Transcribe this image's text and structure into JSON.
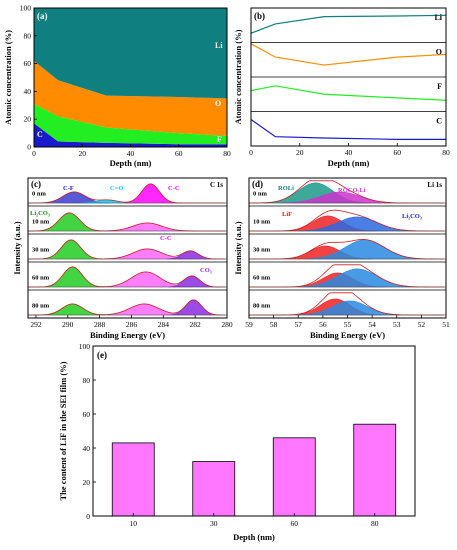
{
  "chart_data": [
    {
      "panel": "(a)",
      "type": "area",
      "xlabel": "Depth (nm)",
      "ylabel": "Atomic concentration (%)",
      "xlim": [
        0,
        80
      ],
      "ylim": [
        0,
        100
      ],
      "xticks": [
        "0",
        "20",
        "40",
        "60",
        "80"
      ],
      "yticks": [
        "0",
        "20",
        "40",
        "60",
        "80",
        "100"
      ],
      "x": [
        0,
        10,
        30,
        60,
        80
      ],
      "series": [
        {
          "name": "C",
          "color": "#1a1acd",
          "values": [
            17,
            4,
            3,
            2,
            2
          ]
        },
        {
          "name": "F",
          "color": "#22ee22",
          "values": [
            14,
            18,
            11,
            8,
            6
          ]
        },
        {
          "name": "O",
          "color": "#ff8c00",
          "values": [
            31,
            26,
            23,
            26,
            27
          ]
        },
        {
          "name": "Li",
          "color": "#0f7f7f",
          "values": [
            38,
            52,
            63,
            64,
            65
          ]
        }
      ]
    },
    {
      "panel": "(b)",
      "type": "line",
      "xlabel": "Depth (nm)",
      "ylabel": "Atomic concentration (%)",
      "xlim": [
        0,
        80
      ],
      "xticks": [
        "0",
        "20",
        "40",
        "60",
        "80"
      ],
      "x": [
        0,
        10,
        30,
        60,
        80
      ],
      "series": [
        {
          "name": "Li",
          "color": "#0f7f7f",
          "values": [
            38,
            52,
            63,
            64,
            65
          ]
        },
        {
          "name": "O",
          "color": "#ff8c00",
          "values": [
            31,
            26,
            23,
            26,
            27
          ]
        },
        {
          "name": "F",
          "color": "#22ee22",
          "values": [
            14,
            18,
            11,
            8,
            6
          ]
        },
        {
          "name": "C",
          "color": "#1a1acd",
          "values": [
            17,
            4,
            3,
            2,
            2
          ]
        }
      ]
    },
    {
      "panel": "(c)",
      "type": "line",
      "title": "C 1s",
      "xlabel": "Binding Energy (eV)",
      "ylabel": "Intensity (a.u.)",
      "xlim": [
        292.5,
        280
      ],
      "xticks": [
        "292",
        "290",
        "288",
        "286",
        "284",
        "282",
        "280"
      ],
      "rows": [
        "0 nm",
        "10 nm",
        "30 nm",
        "60 nm",
        "80 nm"
      ],
      "annotations": [
        {
          "text": "C-F",
          "color": "#1a1acd"
        },
        {
          "text": "C=O",
          "color": "#00d0ff"
        },
        {
          "text": "C-C",
          "color": "#ff00ff"
        },
        {
          "text": "Li₂CO₃",
          "color": "#1a8a1a"
        },
        {
          "text": "C-C",
          "color": "#ff00ff"
        },
        {
          "text": "CO₃",
          "color": "#8a2be2"
        }
      ],
      "peaks": [
        [
          {
            "pos": 289.6,
            "h": 0.55,
            "w": 0.7,
            "color": "#3c3cd0"
          },
          {
            "pos": 287.5,
            "h": 0.15,
            "w": 0.6,
            "color": "#00d0ff"
          },
          {
            "pos": 284.8,
            "h": 0.95,
            "w": 0.55,
            "color": "#ff00ff"
          }
        ],
        [
          {
            "pos": 289.9,
            "h": 0.9,
            "w": 0.65,
            "color": "#22cc22"
          },
          {
            "pos": 285.0,
            "h": 0.4,
            "w": 0.9,
            "color": "#ff66ff"
          }
        ],
        [
          {
            "pos": 289.8,
            "h": 0.95,
            "w": 0.6,
            "color": "#22cc22"
          },
          {
            "pos": 285.0,
            "h": 0.5,
            "w": 0.9,
            "color": "#ff66ff"
          },
          {
            "pos": 282.3,
            "h": 0.4,
            "w": 0.5,
            "color": "#8a2be2"
          }
        ],
        [
          {
            "pos": 289.7,
            "h": 1.0,
            "w": 0.6,
            "color": "#22cc22"
          },
          {
            "pos": 285.1,
            "h": 0.75,
            "w": 0.9,
            "color": "#ff66ff"
          },
          {
            "pos": 282.2,
            "h": 0.55,
            "w": 0.5,
            "color": "#8a2be2"
          }
        ],
        [
          {
            "pos": 289.7,
            "h": 0.55,
            "w": 0.65,
            "color": "#22cc22"
          },
          {
            "pos": 285.2,
            "h": 0.55,
            "w": 0.9,
            "color": "#ff66ff"
          },
          {
            "pos": 282.1,
            "h": 0.75,
            "w": 0.5,
            "color": "#8a2be2"
          }
        ]
      ]
    },
    {
      "panel": "(d)",
      "type": "line",
      "title": "Li 1s",
      "xlabel": "Binding Energy (eV)",
      "ylabel": "Intensity (a.u.)",
      "xlim": [
        59,
        51
      ],
      "xticks": [
        "59",
        "58",
        "57",
        "56",
        "55",
        "54",
        "53",
        "52",
        "51"
      ],
      "rows": [
        "0 nm",
        "10 nm",
        "30 nm",
        "60 nm",
        "80 nm"
      ],
      "annotations": [
        {
          "text": "ROLi",
          "color": "#0f7f7f"
        },
        {
          "text": "ROCO₂Li",
          "color": "#cc33cc"
        },
        {
          "text": "LiF",
          "color": "#ee1111"
        },
        {
          "text": "Li₂CO₃",
          "color": "#1a1acd"
        }
      ],
      "peaks": [
        [
          {
            "pos": 56.3,
            "h": 1.0,
            "w": 0.7,
            "color": "#1a9a8a"
          },
          {
            "pos": 55.3,
            "h": 0.55,
            "w": 0.8,
            "color": "#cc33cc"
          }
        ],
        [
          {
            "pos": 55.8,
            "h": 0.75,
            "w": 0.6,
            "color": "#ee2222"
          },
          {
            "pos": 54.6,
            "h": 0.7,
            "w": 0.8,
            "color": "#2a6ae0"
          }
        ],
        [
          {
            "pos": 55.9,
            "h": 0.65,
            "w": 0.6,
            "color": "#ee2222"
          },
          {
            "pos": 54.3,
            "h": 0.95,
            "w": 0.8,
            "color": "#2a8ae0"
          }
        ],
        [
          {
            "pos": 55.4,
            "h": 0.7,
            "w": 0.6,
            "color": "#ee2222"
          },
          {
            "pos": 54.6,
            "h": 0.9,
            "w": 0.8,
            "color": "#2a8ae0"
          }
        ],
        [
          {
            "pos": 55.5,
            "h": 0.8,
            "w": 0.6,
            "color": "#ee2222"
          },
          {
            "pos": 54.9,
            "h": 0.7,
            "w": 0.7,
            "color": "#2a8ae0"
          }
        ]
      ]
    },
    {
      "panel": "(e)",
      "type": "bar",
      "xlabel": "Depth (nm)",
      "ylabel": "The content of LiF in the SEI film (%)",
      "categories": [
        "10",
        "30",
        "60",
        "80"
      ],
      "values": [
        43,
        32,
        46,
        54
      ],
      "ylim": [
        0,
        100
      ],
      "yticks": [
        "0",
        "20",
        "40",
        "60",
        "80",
        "100"
      ],
      "bar_color": "#ff77ff"
    }
  ]
}
